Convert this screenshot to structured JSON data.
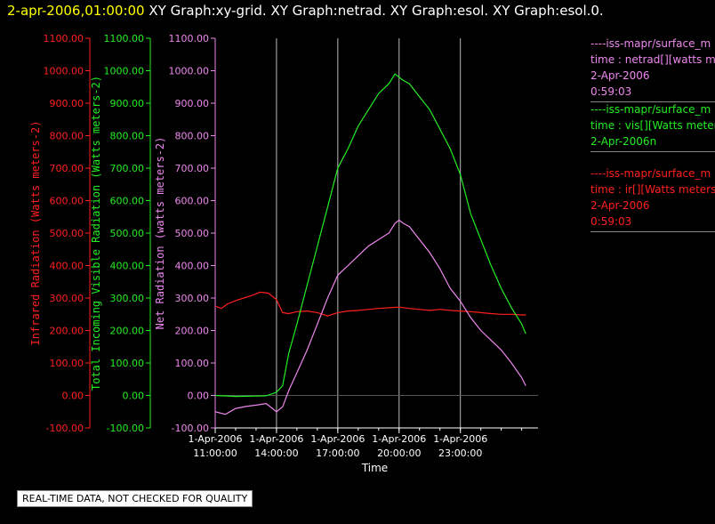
{
  "title": {
    "date": "2-apr-2006,01:00:00",
    "rest": " XY Graph:xy-grid.  XY Graph:netrad.  XY Graph:esol.  XY Graph:esol.0."
  },
  "colors": {
    "ir": "#ff2020",
    "vis": "#22ee22",
    "net": "#ee88ee",
    "grid": "#bbbbbb",
    "axis": "#ffffff"
  },
  "legend": [
    {
      "color": "#ee88ee",
      "lines": [
        "----iss-mapr/surface_m",
        "time : netrad[][watts m",
        "2-Apr-2006",
        "0:59:03"
      ]
    },
    {
      "color": "#22ee22",
      "lines": [
        "----iss-mapr/surface_m",
        "time : vis[][Watts meter",
        "2-Apr-2006n"
      ]
    },
    {
      "color": "#ff2020",
      "lines": [
        "----iss-mapr/surface_m",
        "time : ir[][Watts meters",
        "2-Apr-2006",
        "0:59:03"
      ]
    }
  ],
  "qc_note": "REAL-TIME DATA, NOT CHECKED FOR QUALITY",
  "chart_data": {
    "type": "line",
    "xlabel": "Time",
    "x_unit": "hours since 1-Apr-2006 00:00",
    "xlim": [
      11,
      26.8
    ],
    "x_ticks": [
      {
        "x": 11,
        "line1": "1-Apr-2006",
        "line2": "11:00:00"
      },
      {
        "x": 14,
        "line1": "1-Apr-2006",
        "line2": "14:00:00"
      },
      {
        "x": 17,
        "line1": "1-Apr-2006",
        "line2": "17:00:00"
      },
      {
        "x": 20,
        "line1": "1-Apr-2006",
        "line2": "20:00:00"
      },
      {
        "x": 23,
        "line1": "1-Apr-2006",
        "line2": "23:00:00"
      }
    ],
    "ylim": [
      -100,
      1100
    ],
    "y_ticks": [
      "-100.00",
      "0.00",
      "100.00",
      "200.00",
      "300.00",
      "400.00",
      "500.00",
      "600.00",
      "700.00",
      "800.00",
      "900.00",
      "1000.00",
      "1100.00"
    ],
    "axes": [
      {
        "id": "ir",
        "label": "Infrared Radiation (Watts meters-2)",
        "color": "#ff2020"
      },
      {
        "id": "vis",
        "label": "Total Incoming Visible Radiation (Watts meters-2)",
        "color": "#22ee22"
      },
      {
        "id": "net",
        "label": "Net Radiation (watts meters-2)",
        "color": "#ee88ee"
      }
    ],
    "grid": true,
    "series": [
      {
        "axis": "ir",
        "x": [
          11.0,
          11.3,
          11.6,
          12.0,
          12.4,
          12.8,
          13.2,
          13.6,
          14.0,
          14.3,
          14.6,
          15.0,
          15.5,
          16.0,
          16.5,
          17.0,
          17.5,
          18.0,
          18.5,
          19.0,
          19.5,
          20.0,
          20.5,
          21.0,
          21.5,
          22.0,
          22.5,
          23.0,
          23.5,
          24.0,
          24.5,
          25.0,
          25.5,
          26.0,
          26.2
        ],
        "y": [
          275,
          268,
          282,
          292,
          300,
          308,
          318,
          315,
          295,
          255,
          252,
          258,
          260,
          255,
          245,
          255,
          260,
          262,
          265,
          268,
          270,
          272,
          268,
          265,
          262,
          265,
          262,
          260,
          258,
          255,
          252,
          250,
          250,
          248,
          248
        ]
      },
      {
        "axis": "vis",
        "x": [
          11.0,
          12.0,
          13.0,
          13.5,
          14.0,
          14.3,
          14.6,
          15.0,
          15.5,
          16.0,
          16.5,
          17.0,
          17.5,
          18.0,
          18.5,
          19.0,
          19.5,
          19.8,
          20.0,
          20.2,
          20.5,
          21.0,
          21.5,
          22.0,
          22.5,
          23.0,
          23.5,
          24.0,
          24.5,
          25.0,
          25.5,
          26.0,
          26.2
        ],
        "y": [
          0,
          -3,
          -2,
          -1,
          10,
          30,
          130,
          220,
          340,
          460,
          580,
          700,
          760,
          830,
          880,
          930,
          960,
          990,
          980,
          970,
          960,
          920,
          880,
          820,
          760,
          680,
          560,
          480,
          400,
          330,
          270,
          220,
          190
        ]
      },
      {
        "axis": "net",
        "x": [
          11.0,
          11.5,
          12.0,
          12.5,
          13.0,
          13.5,
          14.0,
          14.3,
          14.6,
          15.0,
          15.5,
          16.0,
          16.5,
          17.0,
          17.5,
          18.0,
          18.5,
          19.0,
          19.5,
          19.8,
          20.0,
          20.2,
          20.5,
          21.0,
          21.5,
          22.0,
          22.5,
          23.0,
          23.5,
          24.0,
          24.5,
          25.0,
          25.5,
          26.0,
          26.2
        ],
        "y": [
          -50,
          -58,
          -40,
          -34,
          -30,
          -25,
          -50,
          -35,
          15,
          70,
          140,
          220,
          300,
          370,
          400,
          430,
          460,
          480,
          500,
          530,
          540,
          530,
          520,
          480,
          440,
          390,
          330,
          290,
          240,
          200,
          170,
          140,
          100,
          55,
          30
        ]
      }
    ]
  }
}
